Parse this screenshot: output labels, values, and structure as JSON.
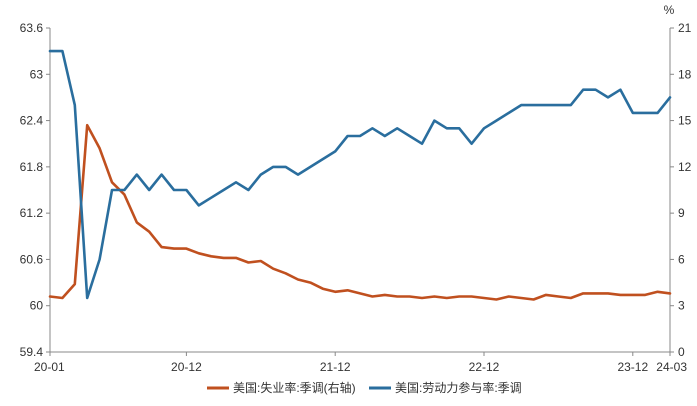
{
  "chart_data": {
    "type": "line",
    "left_axis": {
      "ticks": [
        "59.4",
        "60",
        "60.6",
        "61.2",
        "61.8",
        "62.4",
        "63",
        "63.6"
      ],
      "range": [
        59.4,
        63.6
      ]
    },
    "right_axis": {
      "unit": "%",
      "ticks": [
        "0",
        "3",
        "6",
        "9",
        "12",
        "15",
        "18",
        "21"
      ],
      "range": [
        0,
        21
      ]
    },
    "x_axis": {
      "ticks": [
        "20-01",
        "20-12",
        "21-12",
        "22-12",
        "23-12",
        "24-03"
      ]
    },
    "grid": false,
    "legend_position": "bottom",
    "series": [
      {
        "name": "美国:失业率:季调(右轴)",
        "axis": "right",
        "color": "#c0501f",
        "x": [
          "20-01",
          "20-02",
          "20-03",
          "20-04",
          "20-05",
          "20-06",
          "20-07",
          "20-08",
          "20-09",
          "20-10",
          "20-11",
          "20-12",
          "21-01",
          "21-02",
          "21-03",
          "21-04",
          "21-05",
          "21-06",
          "21-07",
          "21-08",
          "21-09",
          "21-10",
          "21-11",
          "21-12",
          "22-01",
          "22-02",
          "22-03",
          "22-04",
          "22-05",
          "22-06",
          "22-07",
          "22-08",
          "22-09",
          "22-10",
          "22-11",
          "22-12",
          "23-01",
          "23-02",
          "23-03",
          "23-04",
          "23-05",
          "23-06",
          "23-07",
          "23-08",
          "23-09",
          "23-10",
          "23-11",
          "23-12",
          "24-01",
          "24-02",
          "24-03"
        ],
        "values": [
          3.6,
          3.5,
          4.4,
          14.7,
          13.2,
          11.0,
          10.2,
          8.4,
          7.8,
          6.8,
          6.7,
          6.7,
          6.4,
          6.2,
          6.1,
          6.1,
          5.8,
          5.9,
          5.4,
          5.1,
          4.7,
          4.5,
          4.1,
          3.9,
          4.0,
          3.8,
          3.6,
          3.7,
          3.6,
          3.6,
          3.5,
          3.6,
          3.5,
          3.6,
          3.6,
          3.5,
          3.4,
          3.6,
          3.5,
          3.4,
          3.7,
          3.6,
          3.5,
          3.8,
          3.8,
          3.8,
          3.7,
          3.7,
          3.7,
          3.9,
          3.8
        ]
      },
      {
        "name": "美国:劳动力参与率:季调",
        "axis": "left",
        "color": "#2a6e9e",
        "x": [
          "20-01",
          "20-02",
          "20-03",
          "20-04",
          "20-05",
          "20-06",
          "20-07",
          "20-08",
          "20-09",
          "20-10",
          "20-11",
          "20-12",
          "21-01",
          "21-02",
          "21-03",
          "21-04",
          "21-05",
          "21-06",
          "21-07",
          "21-08",
          "21-09",
          "21-10",
          "21-11",
          "21-12",
          "22-01",
          "22-02",
          "22-03",
          "22-04",
          "22-05",
          "22-06",
          "22-07",
          "22-08",
          "22-09",
          "22-10",
          "22-11",
          "22-12",
          "23-01",
          "23-02",
          "23-03",
          "23-04",
          "23-05",
          "23-06",
          "23-07",
          "23-08",
          "23-09",
          "23-10",
          "23-11",
          "23-12",
          "24-01",
          "24-02",
          "24-03"
        ],
        "values": [
          63.3,
          63.3,
          62.6,
          60.1,
          60.6,
          61.5,
          61.5,
          61.7,
          61.5,
          61.7,
          61.5,
          61.5,
          61.3,
          61.4,
          61.5,
          61.6,
          61.5,
          61.7,
          61.8,
          61.8,
          61.7,
          61.8,
          61.9,
          62.0,
          62.2,
          62.2,
          62.3,
          62.2,
          62.3,
          62.2,
          62.1,
          62.4,
          62.3,
          62.3,
          62.1,
          62.3,
          62.4,
          62.5,
          62.6,
          62.6,
          62.6,
          62.6,
          62.6,
          62.8,
          62.8,
          62.7,
          62.8,
          62.5,
          62.5,
          62.5,
          62.7
        ]
      }
    ]
  }
}
